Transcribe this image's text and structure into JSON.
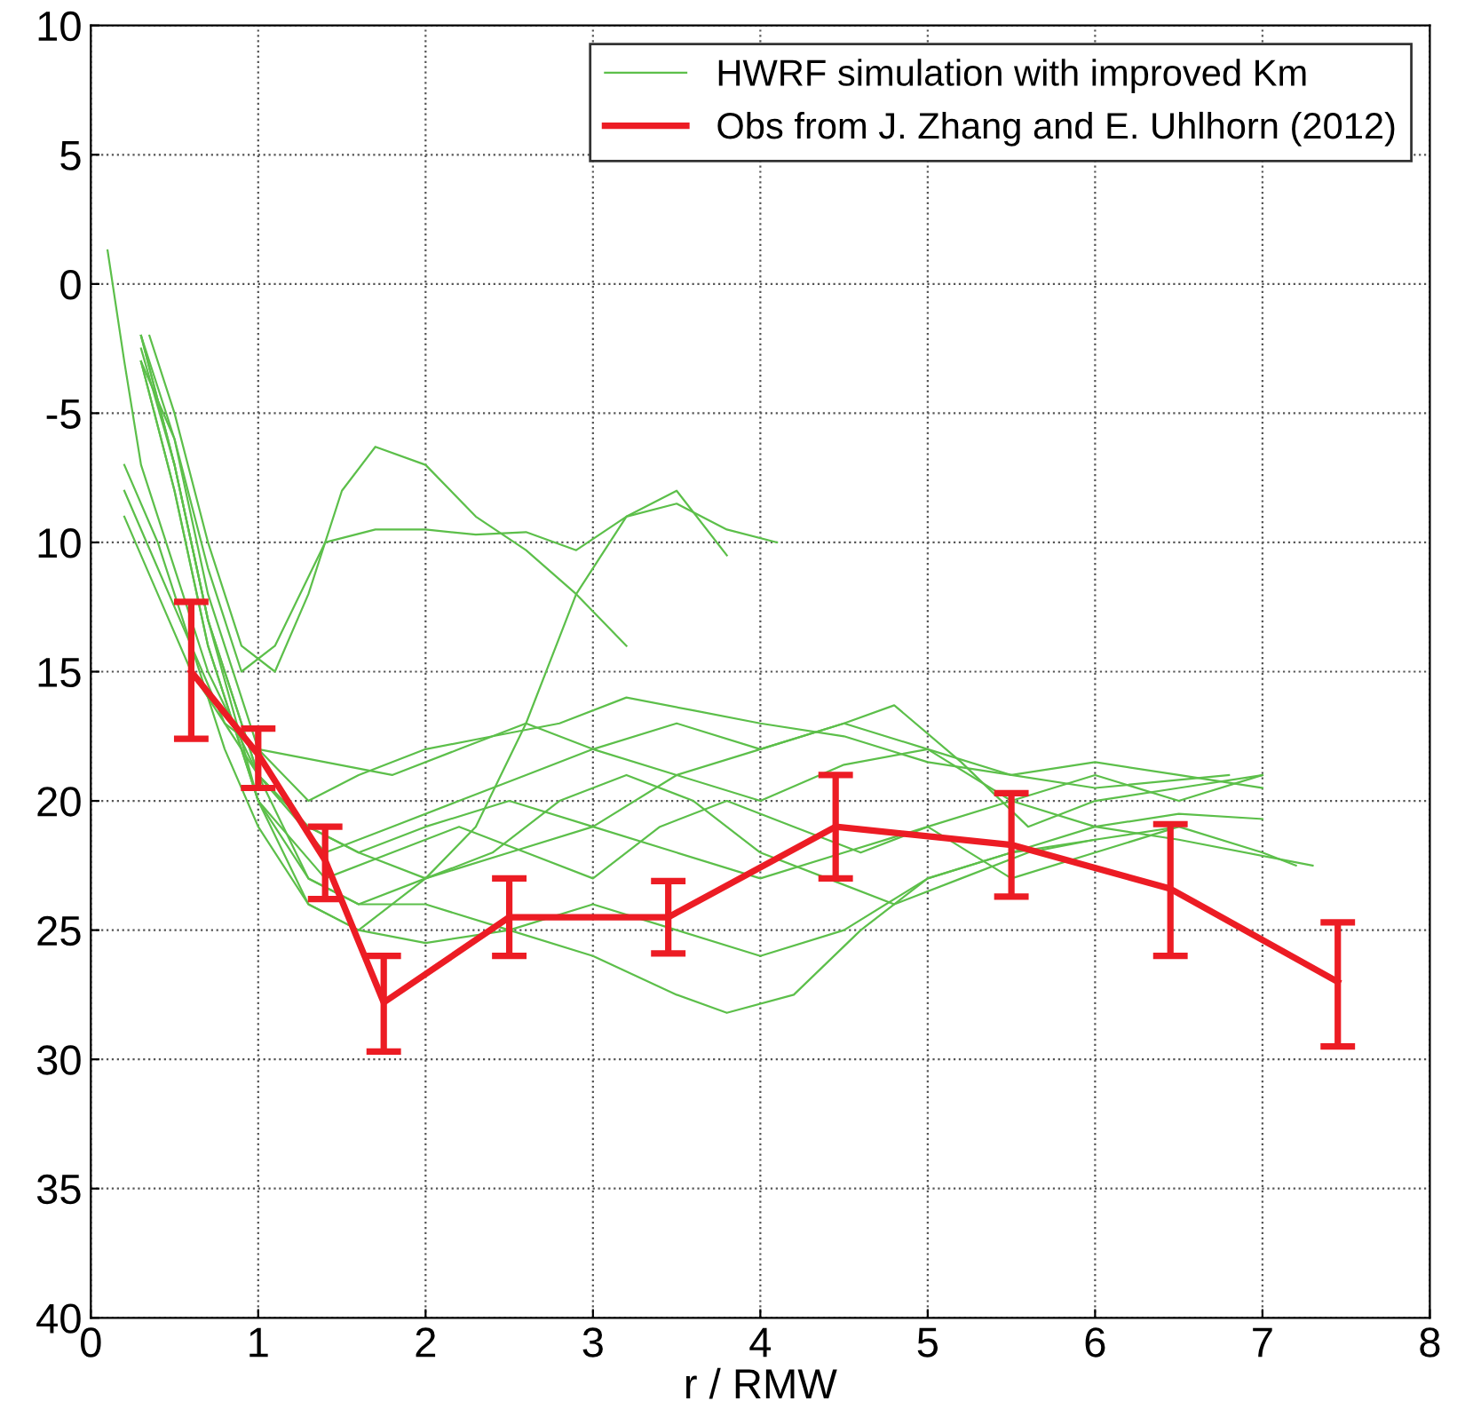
{
  "chart_data": {
    "type": "line",
    "xlabel": "r / RMW",
    "xlim": [
      0,
      8
    ],
    "xticks": [
      0,
      1,
      2,
      3,
      4,
      5,
      6,
      7,
      8
    ],
    "ylim": [
      -40,
      10
    ],
    "yticks": [
      {
        "value": -40,
        "label": "40"
      },
      {
        "value": -35,
        "label": "35"
      },
      {
        "value": -30,
        "label": "30"
      },
      {
        "value": -25,
        "label": "25"
      },
      {
        "value": -20,
        "label": "20"
      },
      {
        "value": -15,
        "label": "15"
      },
      {
        "value": -10,
        "label": "10"
      },
      {
        "value": -5,
        "label": "-5"
      },
      0,
      5,
      10
    ],
    "grid": true,
    "legend": "top right",
    "line_style": "solid",
    "marker": "none",
    "series": [
      {
        "name": "HWRF simulation with improved Km",
        "color": "#5cbf4a",
        "x": [
          0.1,
          0.2,
          0.3,
          0.5,
          0.7,
          1.0,
          1.3,
          1.6,
          2.0,
          2.5,
          3.0,
          3.5,
          4.0,
          4.5,
          5.0,
          5.5,
          6.0,
          6.5,
          7.0
        ],
        "values": [
          1.3,
          -3,
          -7,
          -11,
          -15,
          -19,
          -21,
          -22,
          -21,
          -20,
          -21,
          -19,
          -20,
          -18.6,
          -18,
          -20,
          -19,
          -20,
          -19
        ]
      },
      {
        "color": "#5cbf4a",
        "x": [
          0.35,
          0.5,
          0.7,
          0.9,
          1.1,
          1.3,
          1.5,
          1.7,
          2.0,
          2.3,
          2.6,
          2.9,
          3.2
        ],
        "values": [
          -2,
          -5,
          -10,
          -14,
          -15,
          -12,
          -8,
          -6.3,
          -7,
          -9,
          -10.3,
          -12,
          -14
        ]
      },
      {
        "color": "#5cbf4a",
        "x": [
          0.3,
          0.5,
          0.7,
          0.9,
          1.1,
          1.4,
          1.7,
          2.0,
          2.3,
          2.6,
          2.9,
          3.2,
          3.5,
          3.8
        ],
        "values": [
          -3,
          -6,
          -11,
          -15,
          -14,
          -10,
          -9.5,
          -9.5,
          -9.7,
          -9.6,
          -10.3,
          -9,
          -8,
          -10.5
        ]
      },
      {
        "color": "#5cbf4a",
        "x": [
          0.2,
          0.4,
          0.6,
          0.8,
          1.0,
          1.3,
          1.6,
          2.0,
          2.3,
          2.6,
          2.9,
          3.2,
          3.5,
          3.8,
          4.1
        ],
        "values": [
          -8,
          -11,
          -14,
          -18,
          -21,
          -24,
          -25,
          -23,
          -21,
          -17,
          -12,
          -9,
          -8.5,
          -9.5,
          -10
        ]
      },
      {
        "color": "#5cbf4a",
        "x": [
          0.3,
          0.5,
          0.7,
          1.0,
          1.3,
          1.6,
          2.0,
          2.5,
          3.0,
          3.5,
          4.0,
          4.5,
          5.0,
          5.5,
          6.0,
          6.5,
          7.0,
          7.2
        ],
        "values": [
          -2.5,
          -7,
          -13,
          -19,
          -23,
          -24,
          -23,
          -22,
          -21,
          -22,
          -23,
          -22,
          -21,
          -23,
          -22,
          -21,
          -22,
          -22.5
        ]
      },
      {
        "color": "#5cbf4a",
        "x": [
          0.3,
          0.5,
          0.7,
          1.0,
          1.3,
          1.6,
          2.0,
          2.5,
          3.0,
          3.5,
          4.0,
          4.5,
          5.0,
          5.5,
          6.0,
          6.5,
          7.0
        ],
        "values": [
          -3,
          -8,
          -14,
          -20,
          -24,
          -25,
          -25.5,
          -25,
          -24,
          -25,
          -26,
          -25,
          -23,
          -22,
          -21,
          -20.5,
          -20.7
        ]
      },
      {
        "color": "#5cbf4a",
        "x": [
          0.3,
          0.5,
          0.7,
          1.0,
          1.3,
          1.6,
          2.0,
          2.5,
          3.0,
          3.5,
          3.8,
          4.2,
          4.6,
          5.0,
          5.5,
          6.0,
          6.5
        ],
        "values": [
          -3,
          -8,
          -14,
          -20,
          -23,
          -24,
          -24,
          -25,
          -26,
          -27.5,
          -28.2,
          -27.5,
          -25,
          -23,
          -22,
          -21.5,
          -21
        ]
      },
      {
        "color": "#5cbf4a",
        "x": [
          0.2,
          0.4,
          0.6,
          0.8,
          1.0,
          1.4,
          1.8,
          2.2,
          2.6,
          3.0,
          3.5,
          4.0,
          4.5,
          5.0,
          5.5,
          6.0,
          6.5,
          7.0
        ],
        "values": [
          -9,
          -12,
          -15,
          -17,
          -18,
          -18.5,
          -19,
          -18,
          -17,
          -18,
          -19,
          -18,
          -17,
          -18,
          -19,
          -18.5,
          -19,
          -19.5
        ]
      },
      {
        "color": "#5cbf4a",
        "x": [
          0.3,
          0.5,
          0.7,
          1.0,
          1.4,
          1.8,
          2.2,
          2.6,
          3.0,
          3.5,
          4.0,
          4.5,
          4.8,
          5.2,
          5.6,
          6.0,
          6.5,
          7.0
        ],
        "values": [
          -2,
          -7,
          -13,
          -19,
          -22,
          -21,
          -20,
          -19,
          -18,
          -17,
          -18,
          -17,
          -16.3,
          -18.5,
          -21,
          -20,
          -19.5,
          -19
        ]
      },
      {
        "color": "#5cbf4a",
        "x": [
          0.3,
          0.5,
          0.7,
          1.0,
          1.4,
          1.8,
          2.2,
          2.6,
          3.0,
          3.4,
          3.8,
          4.2,
          4.6,
          5.0,
          5.5,
          6.0,
          6.5,
          7.3
        ],
        "values": [
          -2,
          -7,
          -13,
          -20,
          -23,
          -22,
          -21,
          -22,
          -23,
          -21,
          -20,
          -21,
          -22,
          -21,
          -20,
          -21,
          -21.5,
          -22.5
        ]
      },
      {
        "color": "#5cbf4a",
        "x": [
          0.3,
          0.5,
          0.7,
          1.0,
          1.3,
          1.6,
          2.0,
          2.4,
          2.8,
          3.2,
          3.6,
          4.0,
          4.5,
          5.0,
          5.5,
          6.0,
          6.8
        ],
        "values": [
          -2,
          -6,
          -12,
          -18,
          -20,
          -19,
          -18,
          -17.5,
          -17,
          -16,
          -16.5,
          -17,
          -17.5,
          -18.5,
          -19,
          -19.5,
          -19
        ]
      },
      {
        "color": "#5cbf4a",
        "x": [
          0.2,
          0.4,
          0.6,
          0.8,
          1.0,
          1.3,
          1.6,
          2.0,
          2.4,
          2.8,
          3.2,
          3.6,
          4.0,
          4.4,
          4.8,
          5.2,
          5.6,
          6.0
        ],
        "values": [
          -7,
          -10,
          -14,
          -17,
          -19,
          -21,
          -22,
          -23,
          -22,
          -20,
          -19,
          -20,
          -22,
          -23,
          -24,
          -23,
          -22,
          -21.5
        ]
      },
      {
        "type": "line",
        "name": "Obs from J. Zhang and E. Uhlhorn (2012)",
        "color": "#ec1c24",
        "x": [
          0.6,
          1.0,
          1.4,
          1.75,
          2.5,
          3.45,
          4.45,
          5.5,
          6.45,
          7.45
        ],
        "values": [
          -15,
          -18.2,
          -22.3,
          -27.8,
          -24.5,
          -24.5,
          -21,
          -21.7,
          -23.4,
          -27
        ],
        "errors": [
          [
            -17.6,
            -12.3
          ],
          [
            -19.5,
            -17.2
          ],
          [
            -23.8,
            -21
          ],
          [
            -29.7,
            -26
          ],
          [
            -26,
            -23
          ],
          [
            -25.9,
            -23.1
          ],
          [
            -23,
            -19
          ],
          [
            -23.7,
            -19.7
          ],
          [
            -26,
            -20.9
          ],
          [
            -29.5,
            -24.7
          ]
        ]
      }
    ]
  }
}
